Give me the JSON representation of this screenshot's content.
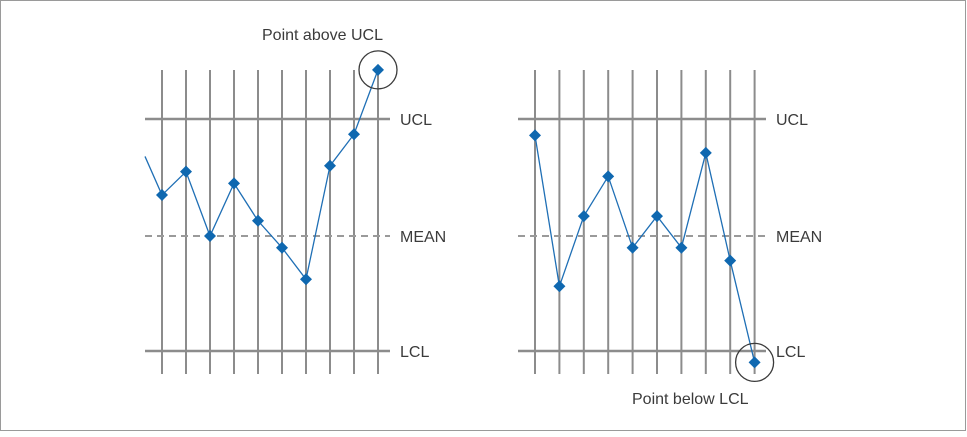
{
  "colors": {
    "grid": "#8c8c8c",
    "mean_line": "#9a9a9a",
    "series": "#1f6fb5",
    "marker": "#0f68b0",
    "text": "#3b3b3b",
    "border": "#9a9a9a",
    "circle": "#3b3b3b"
  },
  "diagrams": [
    {
      "id": "above-ucl",
      "labels": {
        "ucl": "UCL",
        "mean": "MEAN",
        "lcl": "LCL"
      },
      "callout": "Point above UCL",
      "points": [
        0.35,
        0.55,
        0.0,
        0.45,
        0.13,
        -0.1,
        -0.37,
        0.6,
        0.87,
        1.42
      ],
      "entry_from": 0.38,
      "highlight_index": 9
    },
    {
      "id": "below-lcl",
      "labels": {
        "ucl": "UCL",
        "mean": "MEAN",
        "lcl": "LCL"
      },
      "callout": "Point below LCL",
      "points": [
        0.86,
        -0.43,
        0.17,
        0.51,
        -0.1,
        0.17,
        -0.1,
        0.71,
        -0.21,
        -1.08
      ],
      "highlight_index": 9
    }
  ]
}
